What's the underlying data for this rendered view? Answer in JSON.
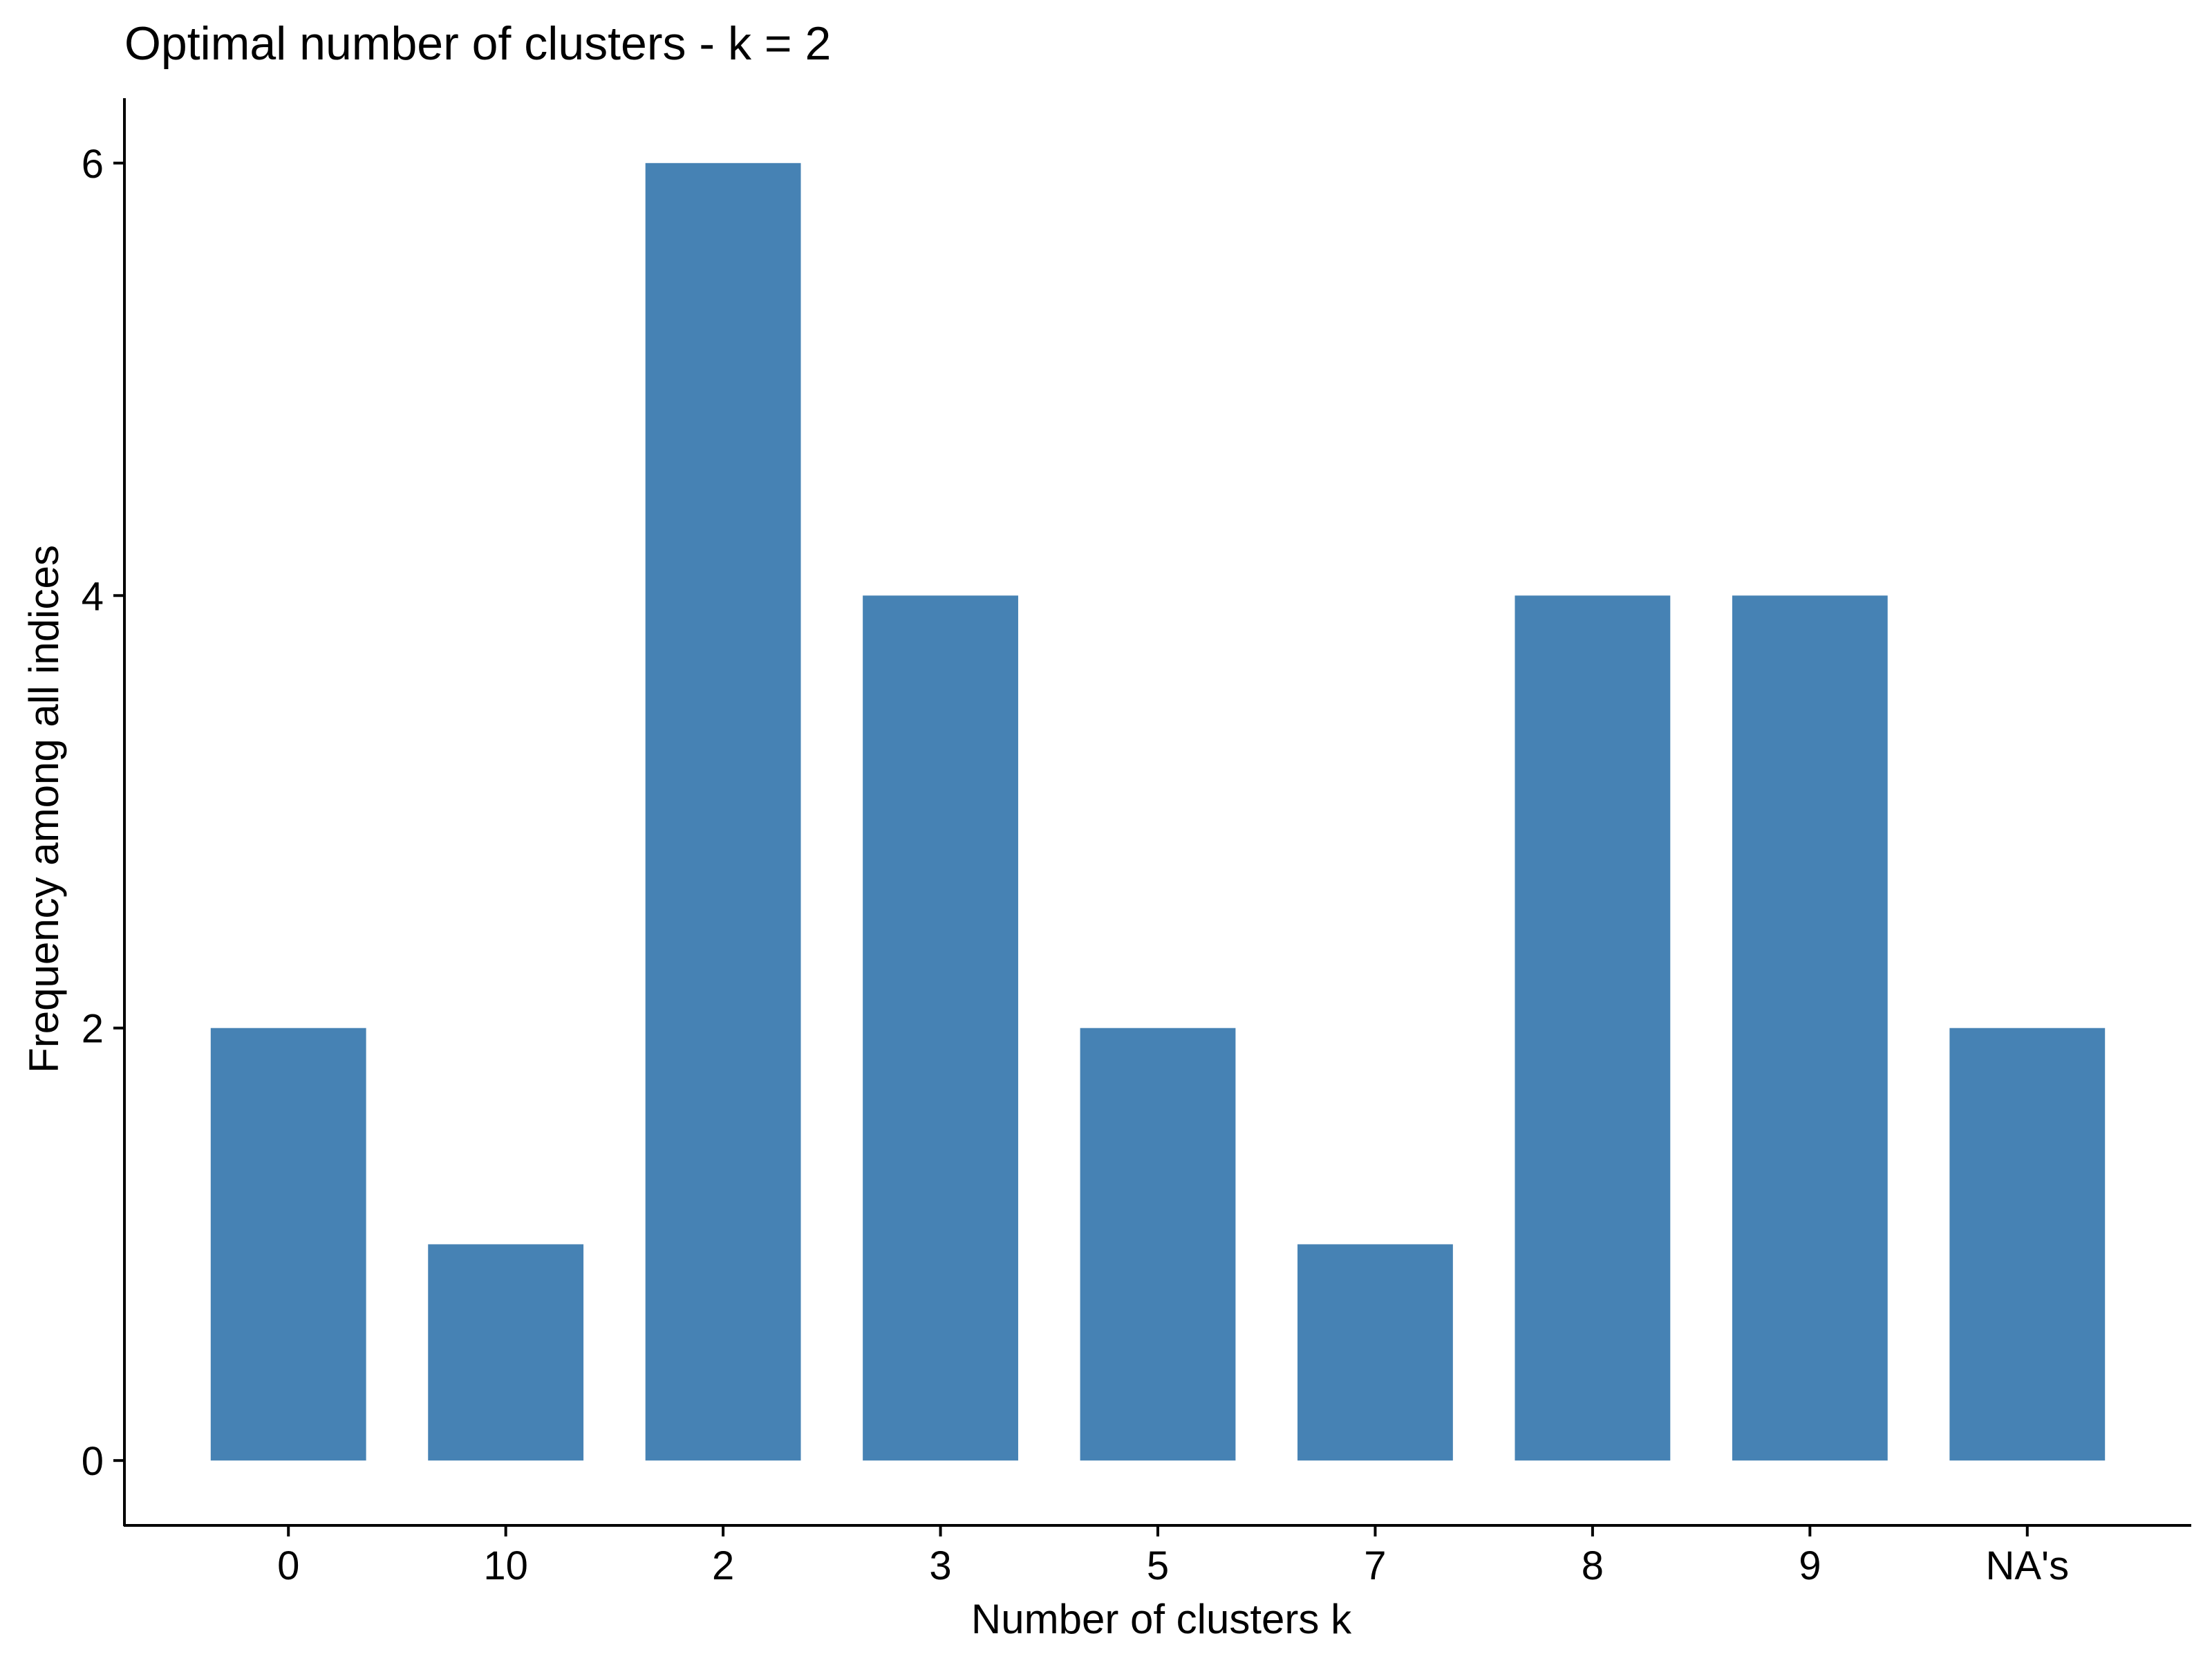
{
  "chart_data": {
    "type": "bar",
    "title": "Optimal number of clusters - k = 2",
    "xlabel": "Number of clusters k",
    "ylabel": "Frequency among all indices",
    "categories": [
      "0",
      "10",
      "2",
      "3",
      "5",
      "7",
      "8",
      "9",
      "NA's"
    ],
    "values": [
      2,
      1,
      6,
      4,
      2,
      1,
      4,
      4,
      2
    ],
    "ylim": [
      -0.3,
      6.3
    ],
    "yticks": [
      0,
      2,
      4,
      6
    ],
    "bar_color": "#4682B4",
    "grid": false,
    "legend": "none"
  }
}
